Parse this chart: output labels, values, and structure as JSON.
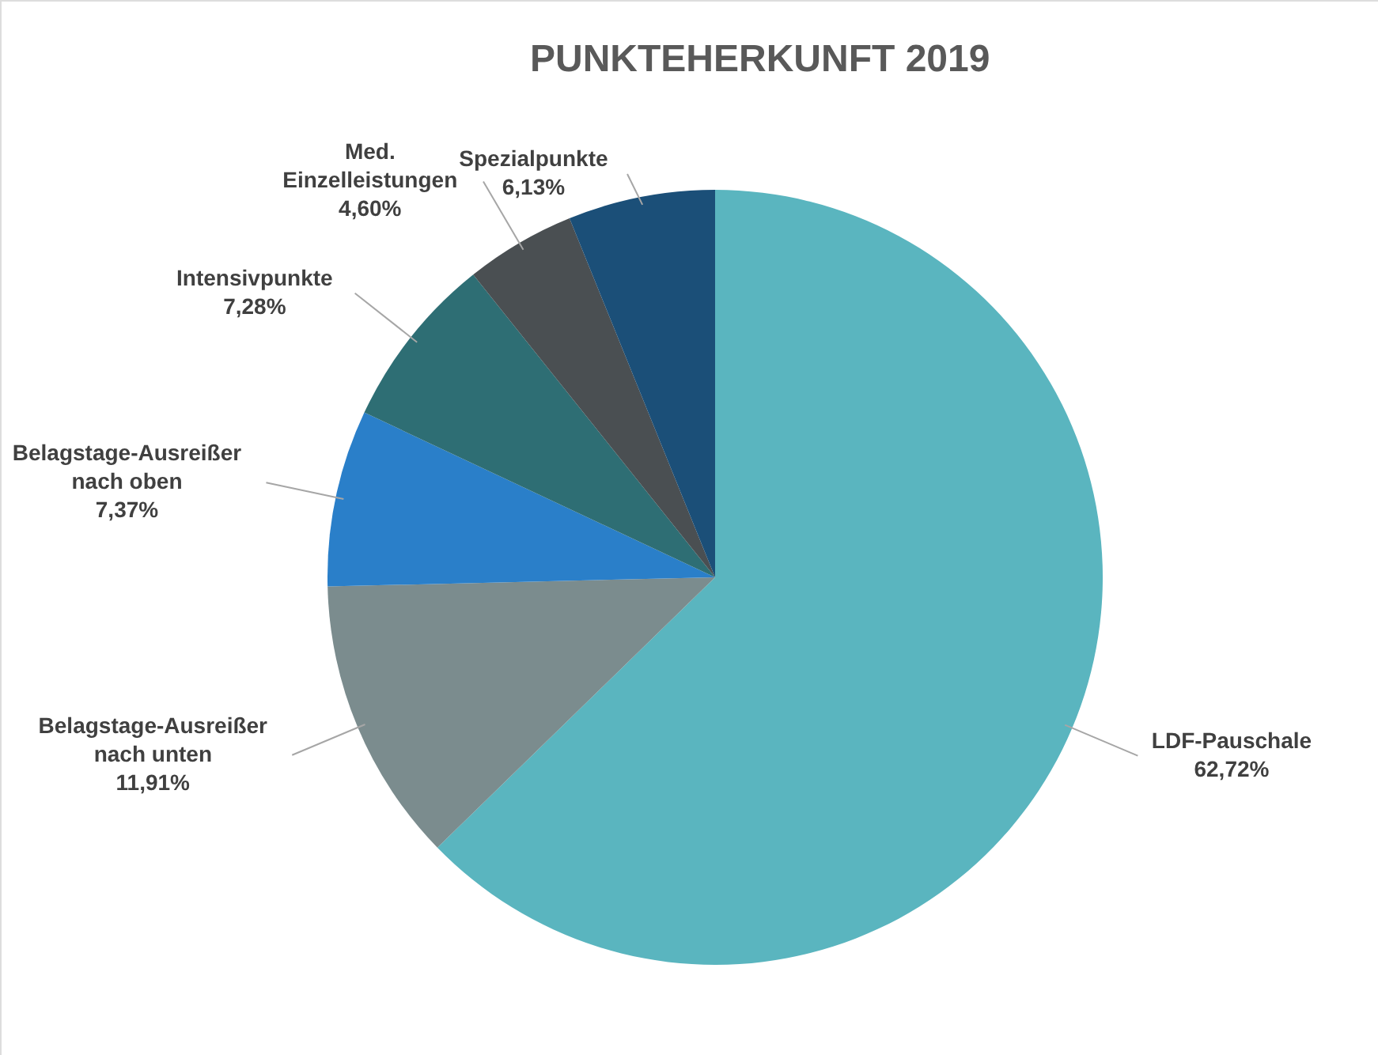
{
  "chart_data": {
    "type": "pie",
    "title": "PUNKTEHERKUNFT 2019",
    "categories": [
      "LDF-Pauschale",
      "Belagstage-Ausreißer nach unten",
      "Belagstage-Ausreißer nach oben",
      "Intensivpunkte",
      "Med. Einzelleistungen",
      "Spezialpunkte"
    ],
    "values": [
      62.72,
      11.91,
      7.37,
      7.28,
      4.6,
      6.13
    ],
    "value_labels": [
      "62,72%",
      "11,91%",
      "7,37%",
      "7,28%",
      "4,60%",
      "6,13%"
    ],
    "colors": [
      "#5ab5bf",
      "#7b8c8e",
      "#2a7fc9",
      "#2e6e74",
      "#4a4f52",
      "#1b4f78"
    ]
  }
}
